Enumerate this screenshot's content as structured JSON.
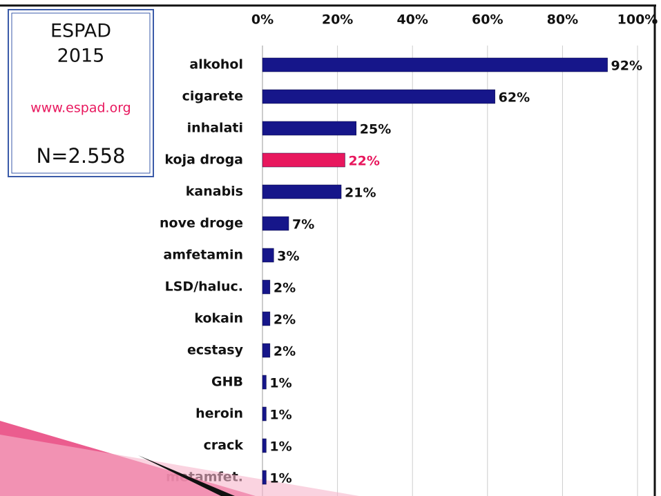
{
  "chart_data": {
    "type": "bar",
    "orientation": "horizontal",
    "categories": [
      "alkohol",
      "cigarete",
      "inhalati",
      "koja droga",
      "kanabis",
      "nove droge",
      "amfetamin",
      "LSD/haluc.",
      "kokain",
      "ecstasy",
      "GHB",
      "heroin",
      "crack",
      "metamfet."
    ],
    "values": [
      92,
      62,
      25,
      22,
      21,
      7,
      3,
      2,
      2,
      2,
      1,
      1,
      1,
      1
    ],
    "value_labels": [
      "92%",
      "62%",
      "25%",
      "22%",
      "21%",
      "7%",
      "3%",
      "2%",
      "2%",
      "2%",
      "1%",
      "1%",
      "1%",
      "1%"
    ],
    "colors": [
      "#16168a",
      "#16168a",
      "#16168a",
      "#e8185e",
      "#16168a",
      "#16168a",
      "#16168a",
      "#16168a",
      "#16168a",
      "#16168a",
      "#16168a",
      "#16168a",
      "#16168a",
      "#16168a"
    ],
    "xlim": [
      0,
      100
    ],
    "xticks": [
      {
        "value": 0,
        "label": "0%"
      },
      {
        "value": 20,
        "label": "20%"
      },
      {
        "value": 40,
        "label": "40%"
      },
      {
        "value": 60,
        "label": "60%"
      },
      {
        "value": 80,
        "label": "80%"
      },
      {
        "value": 100,
        "label": "100%"
      }
    ],
    "grid": true,
    "annotations": [
      "ESPAD",
      "2015",
      "www.espad.org",
      "N=2.558"
    ]
  }
}
